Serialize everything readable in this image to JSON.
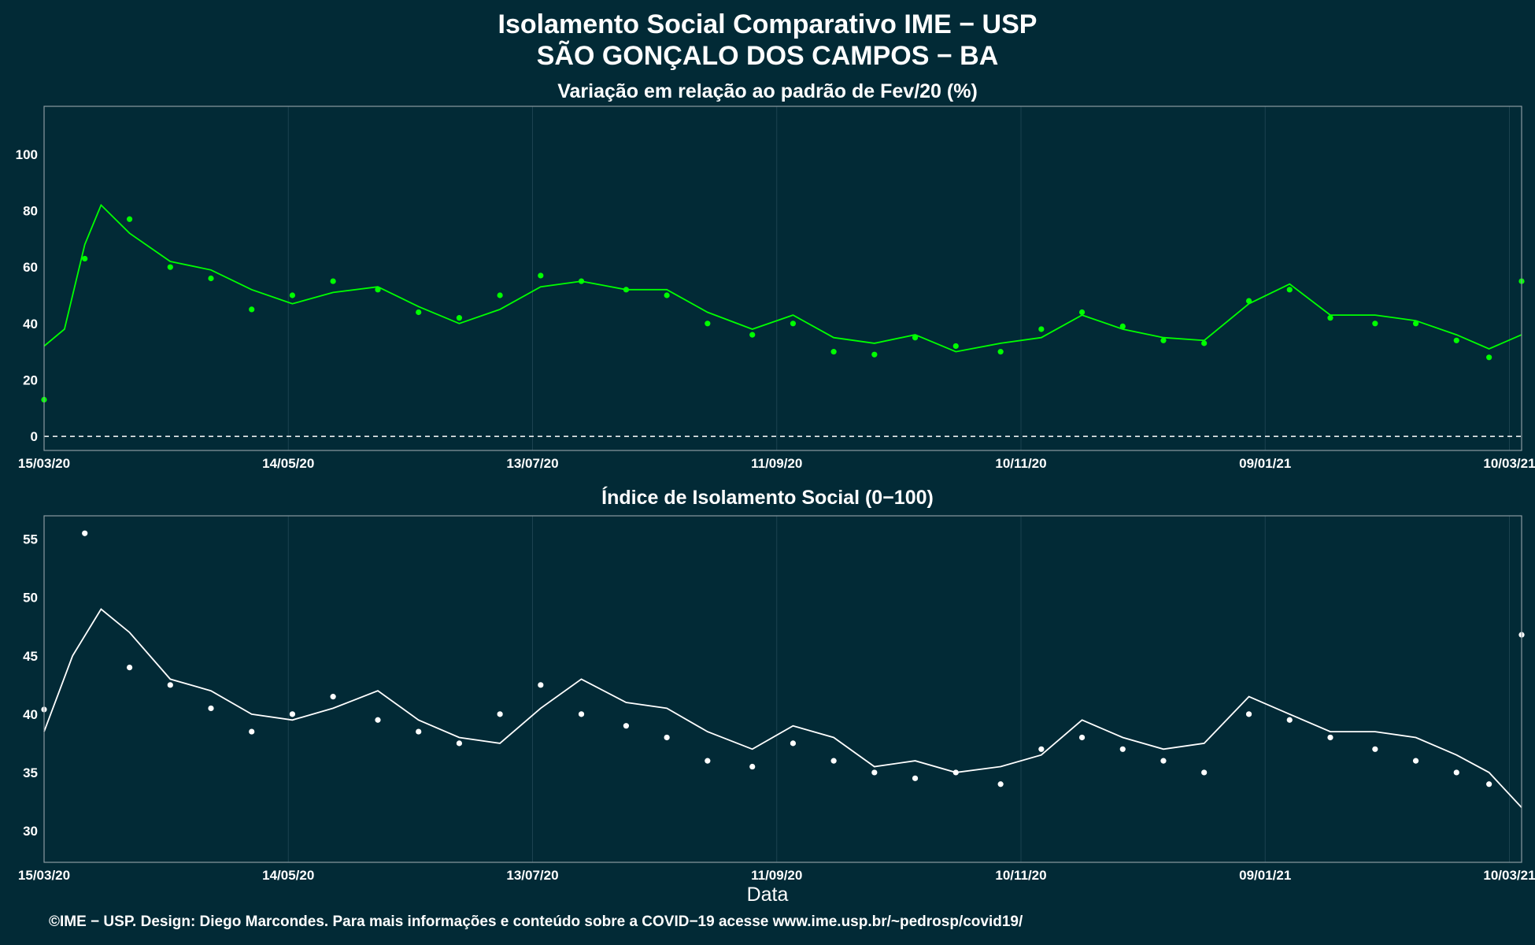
{
  "title": [
    "Isolamento Social Comparativo IME − USP",
    "SÃO GONÇALO DOS CAMPOS − BA"
  ],
  "credit": "©IME − USP. Design: Diego Marcondes. Para mais informações e conteúdo sobre a COVID−19 acesse www.ime.usp.br/~pedrosp/covid19/",
  "colors": {
    "background": "#022a36",
    "top_series": "#00ff00",
    "bottom_series": "#ffffff",
    "frame": "#8a9aa0",
    "grid": "#1c4250"
  },
  "chart_data": [
    {
      "type": "scatter",
      "title": "Variação em relação ao padrão de Fev/20 (%)",
      "xlabel": "",
      "ylabel": "",
      "x_ticks": [
        "15/03/20",
        "14/05/20",
        "13/07/20",
        "11/09/20",
        "10/11/20",
        "09/01/21",
        "10/03/21"
      ],
      "xlim": [
        "15/03/20",
        "13/03/21"
      ],
      "y_ticks": [
        0,
        20,
        40,
        60,
        80,
        100
      ],
      "ylim": [
        -5,
        117
      ],
      "reference_line": 0,
      "series": [
        {
          "kind": "points",
          "color": "#00ff00",
          "x": [
            "15/03/20",
            "25/03/20",
            "05/04/20",
            "15/04/20",
            "25/04/20",
            "05/05/20",
            "15/05/20",
            "25/05/20",
            "05/06/20",
            "15/06/20",
            "25/06/20",
            "05/07/20",
            "15/07/20",
            "25/07/20",
            "05/08/20",
            "15/08/20",
            "25/08/20",
            "05/09/20",
            "15/09/20",
            "25/09/20",
            "05/10/20",
            "15/10/20",
            "25/10/20",
            "05/11/20",
            "15/11/20",
            "25/11/20",
            "05/12/20",
            "15/12/20",
            "25/12/20",
            "05/01/21",
            "15/01/21",
            "25/01/21",
            "05/02/21",
            "15/02/21",
            "25/02/21",
            "05/03/21",
            "13/03/21"
          ],
          "y": [
            13,
            63,
            77,
            60,
            56,
            45,
            50,
            55,
            52,
            44,
            42,
            50,
            57,
            55,
            52,
            50,
            40,
            36,
            40,
            30,
            29,
            35,
            32,
            30,
            38,
            44,
            39,
            34,
            33,
            48,
            52,
            42,
            40,
            40,
            34,
            28,
            55
          ]
        },
        {
          "kind": "moving_average",
          "color": "#00ff00",
          "x": [
            "15/03/20",
            "20/03/20",
            "25/03/20",
            "29/03/20",
            "05/04/20",
            "15/04/20",
            "25/04/20",
            "05/05/20",
            "15/05/20",
            "25/05/20",
            "05/06/20",
            "15/06/20",
            "25/06/20",
            "05/07/20",
            "15/07/20",
            "25/07/20",
            "05/08/20",
            "15/08/20",
            "25/08/20",
            "05/09/20",
            "15/09/20",
            "25/09/20",
            "05/10/20",
            "15/10/20",
            "25/10/20",
            "05/11/20",
            "15/11/20",
            "25/11/20",
            "05/12/20",
            "15/12/20",
            "25/12/20",
            "05/01/21",
            "15/01/21",
            "25/01/21",
            "05/02/21",
            "15/02/21",
            "25/02/21",
            "05/03/21",
            "13/03/21"
          ],
          "y": [
            32,
            38,
            68,
            82,
            72,
            62,
            59,
            52,
            47,
            51,
            53,
            46,
            40,
            45,
            53,
            55,
            52,
            52,
            44,
            38,
            43,
            35,
            33,
            36,
            30,
            33,
            35,
            43,
            38,
            35,
            34,
            47,
            54,
            43,
            43,
            41,
            36,
            31,
            36
          ]
        }
      ]
    },
    {
      "type": "scatter",
      "title": "Índice de Isolamento Social (0−100)",
      "xlabel": "Data",
      "ylabel": "",
      "x_ticks": [
        "15/03/20",
        "14/05/20",
        "13/07/20",
        "11/09/20",
        "10/11/20",
        "09/01/21",
        "10/03/21"
      ],
      "xlim": [
        "15/03/20",
        "13/03/21"
      ],
      "y_ticks": [
        30,
        35,
        40,
        45,
        50,
        55
      ],
      "ylim": [
        27.3,
        57
      ],
      "series": [
        {
          "kind": "points",
          "color": "#ffffff",
          "x": [
            "15/03/20",
            "25/03/20",
            "05/04/20",
            "15/04/20",
            "25/04/20",
            "05/05/20",
            "15/05/20",
            "25/05/20",
            "05/06/20",
            "15/06/20",
            "25/06/20",
            "05/07/20",
            "15/07/20",
            "25/07/20",
            "05/08/20",
            "15/08/20",
            "25/08/20",
            "05/09/20",
            "15/09/20",
            "25/09/20",
            "05/10/20",
            "15/10/20",
            "25/10/20",
            "05/11/20",
            "15/11/20",
            "25/11/20",
            "05/12/20",
            "15/12/20",
            "25/12/20",
            "05/01/21",
            "15/01/21",
            "25/01/21",
            "05/02/21",
            "15/02/21",
            "25/02/21",
            "05/03/21",
            "13/03/21"
          ],
          "y": [
            40.4,
            55.5,
            44,
            42.5,
            40.5,
            38.5,
            40,
            41.5,
            39.5,
            38.5,
            37.5,
            40,
            42.5,
            40,
            39,
            38,
            36,
            35.5,
            37.5,
            36,
            35,
            34.5,
            35,
            34,
            37,
            38,
            37,
            36,
            35,
            40,
            39.5,
            38,
            37,
            36,
            35,
            34,
            46.8
          ]
        },
        {
          "kind": "moving_average",
          "color": "#ffffff",
          "x": [
            "15/03/20",
            "22/03/20",
            "29/03/20",
            "05/04/20",
            "15/04/20",
            "25/04/20",
            "05/05/20",
            "15/05/20",
            "25/05/20",
            "05/06/20",
            "15/06/20",
            "25/06/20",
            "05/07/20",
            "15/07/20",
            "25/07/20",
            "05/08/20",
            "15/08/20",
            "25/08/20",
            "05/09/20",
            "15/09/20",
            "25/09/20",
            "05/10/20",
            "15/10/20",
            "25/10/20",
            "05/11/20",
            "15/11/20",
            "25/11/20",
            "05/12/20",
            "15/12/20",
            "25/12/20",
            "05/01/21",
            "15/01/21",
            "25/01/21",
            "05/02/21",
            "15/02/21",
            "25/02/21",
            "05/03/21",
            "13/03/21"
          ],
          "y": [
            38.5,
            45,
            49,
            47,
            43,
            42,
            40,
            39.5,
            40.5,
            42,
            39.5,
            38,
            37.5,
            40.5,
            43,
            41,
            40.5,
            38.5,
            37,
            39,
            38,
            35.5,
            36,
            35,
            35.5,
            36.5,
            39.5,
            38,
            37,
            37.5,
            41.5,
            40,
            38.5,
            38.5,
            38,
            36.5,
            35,
            32
          ]
        }
      ]
    }
  ]
}
